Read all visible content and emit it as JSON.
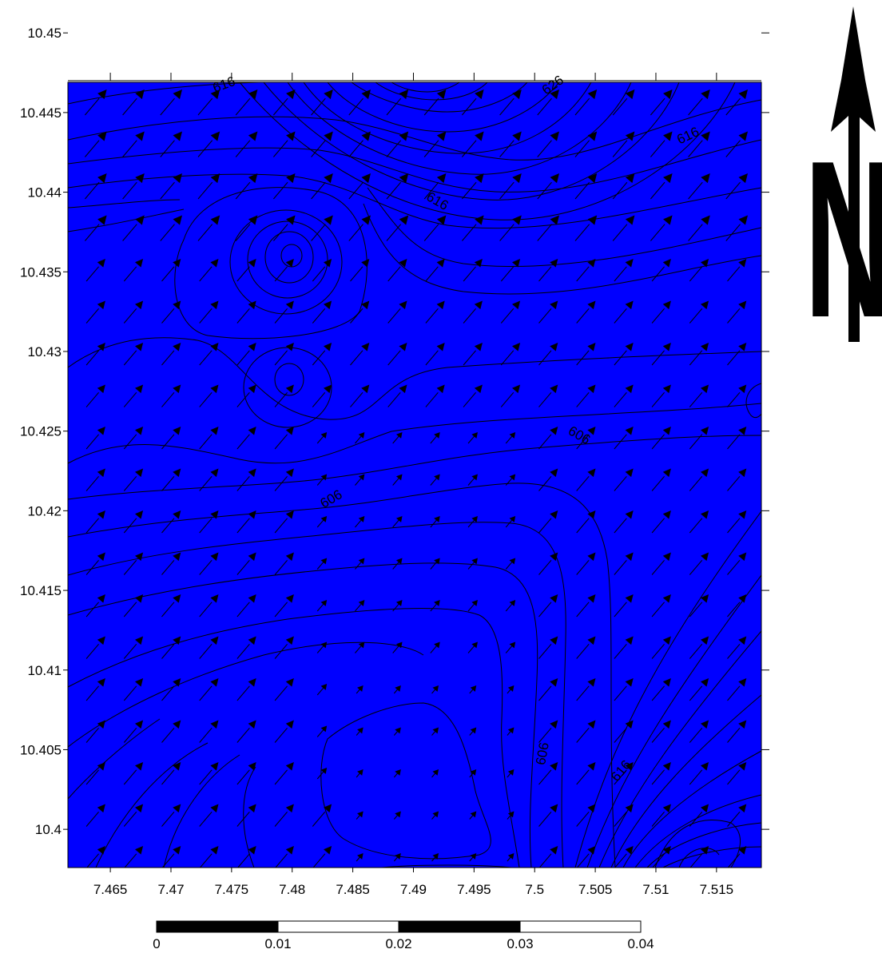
{
  "map": {
    "background_color": "#0000ff",
    "line_color": "#000000"
  },
  "axes": {
    "x_ticks": [
      "7.465",
      "7.47",
      "7.475",
      "7.48",
      "7.485",
      "7.49",
      "7.495",
      "7.5",
      "7.505",
      "7.51",
      "7.515"
    ],
    "y_ticks": [
      "10.45",
      "10.445",
      "10.44",
      "10.435",
      "10.43",
      "10.425",
      "10.42",
      "10.415",
      "10.41",
      "10.405",
      "10.4"
    ],
    "x_range": [
      7.4615,
      7.5187
    ],
    "y_range": [
      10.3976,
      10.4469
    ]
  },
  "contour_labels": [
    {
      "text": "616",
      "x": 7.4745,
      "y": 10.4465,
      "rotate": -20
    },
    {
      "text": "626",
      "x": 7.5017,
      "y": 10.4465,
      "rotate": -35
    },
    {
      "text": "616",
      "x": 7.5128,
      "y": 10.4433,
      "rotate": -25
    },
    {
      "text": "616",
      "x": 7.4918,
      "y": 10.4392,
      "rotate": 30
    },
    {
      "text": "606",
      "x": 7.5035,
      "y": 10.4245,
      "rotate": 30
    },
    {
      "text": "606",
      "x": 7.4834,
      "y": 10.4205,
      "rotate": -30
    },
    {
      "text": "606",
      "x": 7.501,
      "y": 10.4047,
      "rotate": -80
    },
    {
      "text": "616",
      "x": 7.5074,
      "y": 10.4035,
      "rotate": -50
    }
  ],
  "north_arrow": {
    "letter": "N"
  },
  "scale_bar": {
    "labels": [
      "0",
      "0.01",
      "0.02",
      "0.03",
      "0.04"
    ]
  }
}
